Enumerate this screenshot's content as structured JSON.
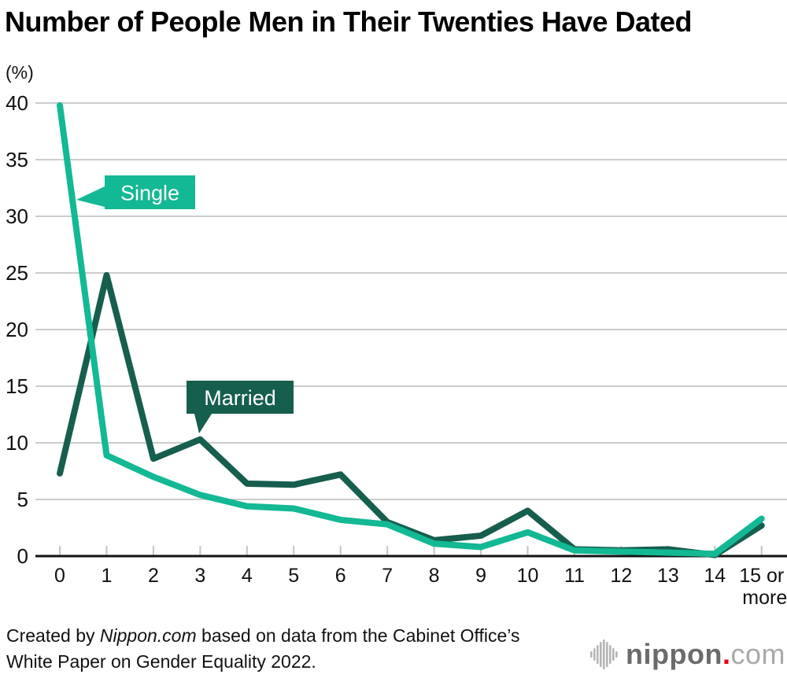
{
  "chart_data": {
    "type": "line",
    "title": "Number of People Men in Their Twenties Have Dated",
    "unit_label": "(%)",
    "xlabel": "",
    "ylabel": "(%)",
    "ylim": [
      0,
      40
    ],
    "y_ticks": [
      0,
      5,
      10,
      15,
      20,
      25,
      30,
      35,
      40
    ],
    "grid": "horizontal",
    "legend_position": "inline-callouts",
    "categories": [
      "0",
      "1",
      "2",
      "3",
      "4",
      "5",
      "6",
      "7",
      "8",
      "9",
      "10",
      "11",
      "12",
      "13",
      "14",
      "15 or more"
    ],
    "series": [
      {
        "name": "Single",
        "color": "#13b894",
        "values": [
          39.8,
          8.9,
          7.0,
          5.4,
          4.4,
          4.2,
          3.2,
          2.8,
          1.1,
          0.8,
          2.1,
          0.5,
          0.4,
          0.3,
          0.2,
          3.3
        ]
      },
      {
        "name": "Married",
        "color": "#165e4e",
        "values": [
          7.3,
          24.8,
          8.6,
          10.3,
          6.4,
          6.3,
          7.2,
          3.0,
          1.4,
          1.8,
          4.0,
          0.6,
          0.5,
          0.6,
          0.1,
          2.7
        ]
      }
    ]
  },
  "footer": {
    "prefix": "Created by ",
    "source_name": "Nippon.com",
    "line1_rest": " based on data from the Cabinet Office’s",
    "line2": "White Paper on Gender Equality 2022."
  },
  "logo": {
    "name": "nippon",
    "dot": ".",
    "tld": "com"
  }
}
